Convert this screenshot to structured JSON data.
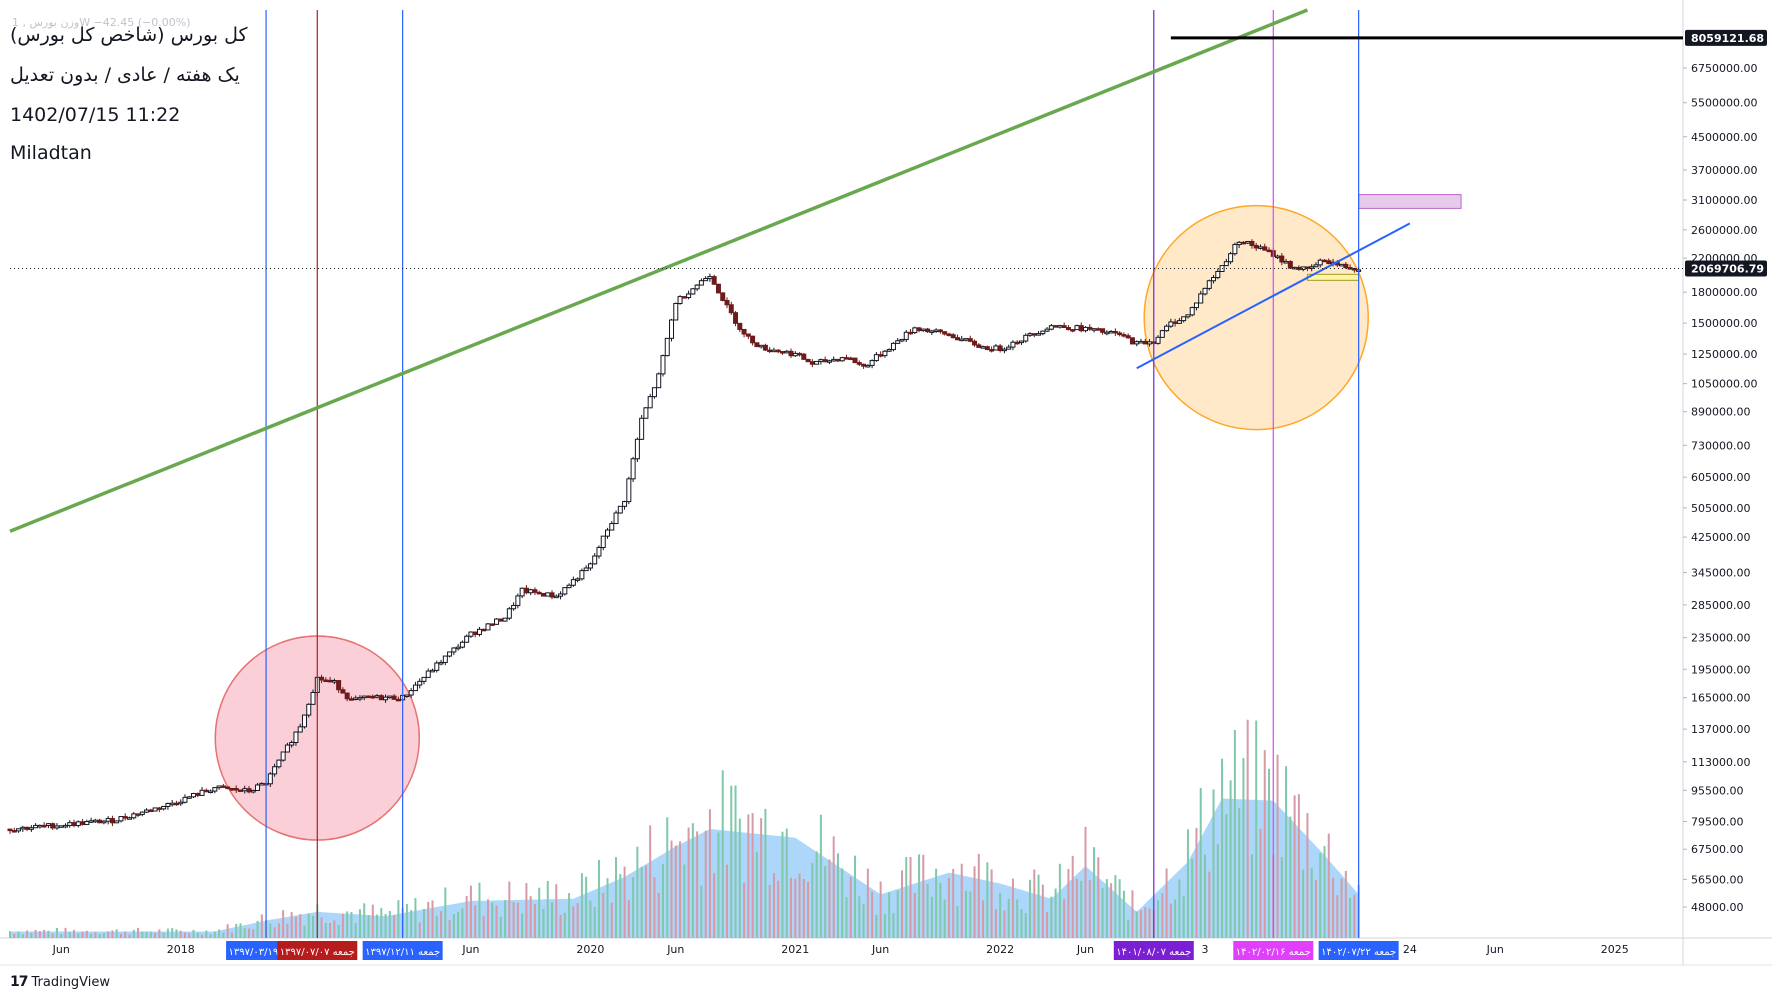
{
  "legend": {
    "ghost": "وزن بورس , 1W   −42.45 (−0.00%)",
    "title": "کل بورس (شاخص کل بورس)",
    "subtitle": "یک هفته / عادی / بدون تعدیل",
    "timestamp": "1402/07/15 11:22",
    "author": "Miladtan"
  },
  "branding": {
    "logo_text": "TradingView",
    "logo_mark": "17"
  },
  "colors": {
    "up": "#131722",
    "down": "#6d1b1b",
    "vol_up": "#7fc8a9",
    "vol_down": "#d59aa5",
    "vol_ma": "#90caf9",
    "trend_green": "#6aa84f",
    "trend_blue": "#2962ff"
  },
  "chart_data": {
    "type": "candlestick",
    "scale": "log",
    "y_range": [
      40000,
      9500000
    ],
    "price_ticks": [
      48000,
      56500,
      67500,
      79500,
      95500,
      113000,
      137000,
      165000,
      195000,
      235000,
      285000,
      345000,
      425000,
      505000,
      605000,
      730000,
      890000,
      1050000,
      1250000,
      1500000,
      1800000,
      2200000,
      2600000,
      3100000,
      3700000,
      4500000,
      5500000,
      6750000
    ],
    "price_tick_labels": [
      "48000.00",
      "56500.00",
      "67500.00",
      "79500.00",
      "95500.00",
      "113000.00",
      "137000.00",
      "165000.00",
      "195000.00",
      "235000.00",
      "285000.00",
      "345000.00",
      "425000.00",
      "505000.00",
      "605000.00",
      "730000.00",
      "890000.00",
      "1050000.00",
      "1250000.00",
      "1500000.00",
      "1800000.00",
      "2200000.00",
      "2600000.00",
      "3100000.00",
      "3700000.00",
      "4500000.00",
      "5500000.00",
      "6750000.00"
    ],
    "last_price": 2069706.79,
    "last_price_label": "2069706.79",
    "top_price": 8059121.68,
    "top_price_label": "8059121.68",
    "x_range": [
      "2017-03",
      "2025-05"
    ],
    "x_ticks": [
      {
        "date": "2017-06",
        "label": "Jun"
      },
      {
        "date": "2018-01",
        "label": "2018"
      },
      {
        "date": "2019-06",
        "label": "Jun"
      },
      {
        "date": "2020-01",
        "label": "2020"
      },
      {
        "date": "2020-06",
        "label": "Jun"
      },
      {
        "date": "2021-01",
        "label": "2021"
      },
      {
        "date": "2021-06",
        "label": "Jun"
      },
      {
        "date": "2022-01",
        "label": "2022"
      },
      {
        "date": "2022-06",
        "label": "Jun"
      },
      {
        "date": "2023-01",
        "label": "3"
      },
      {
        "date": "2024-01",
        "label": "24"
      },
      {
        "date": "2024-06",
        "label": "Jun"
      },
      {
        "date": "2025-01",
        "label": "2025"
      }
    ],
    "price_path": [
      [
        "2017-03",
        76000
      ],
      [
        "2017-09",
        80000
      ],
      [
        "2017-12",
        87000
      ],
      [
        "2018-03",
        97000
      ],
      [
        "2018-05",
        95000
      ],
      [
        "2018-06",
        100000
      ],
      [
        "2018-07",
        118000
      ],
      [
        "2018-08",
        140000
      ],
      [
        "2018-09",
        185000
      ],
      [
        "2018-10",
        180000
      ],
      [
        "2018-11",
        162000
      ],
      [
        "2018-12",
        165000
      ],
      [
        "2019-02",
        165000
      ],
      [
        "2019-04",
        200000
      ],
      [
        "2019-06",
        240000
      ],
      [
        "2019-08",
        265000
      ],
      [
        "2019-09",
        310000
      ],
      [
        "2019-11",
        300000
      ],
      [
        "2020-01",
        360000
      ],
      [
        "2020-02",
        445000
      ],
      [
        "2020-03",
        530000
      ],
      [
        "2020-04",
        850000
      ],
      [
        "2020-05",
        1100000
      ],
      [
        "2020-06",
        1700000
      ],
      [
        "2020-08",
        2000000
      ],
      [
        "2020-09",
        1650000
      ],
      [
        "2020-10",
        1400000
      ],
      [
        "2020-11",
        1300000
      ],
      [
        "2021-01",
        1250000
      ],
      [
        "2021-02",
        1180000
      ],
      [
        "2021-04",
        1230000
      ],
      [
        "2021-05",
        1160000
      ],
      [
        "2021-07",
        1350000
      ],
      [
        "2021-08",
        1460000
      ],
      [
        "2021-10",
        1400000
      ],
      [
        "2021-12",
        1300000
      ],
      [
        "2022-01",
        1290000
      ],
      [
        "2022-04",
        1480000
      ],
      [
        "2022-06",
        1450000
      ],
      [
        "2022-08",
        1400000
      ],
      [
        "2022-09",
        1330000
      ],
      [
        "2022-10",
        1350000
      ],
      [
        "2022-11",
        1500000
      ],
      [
        "2022-12",
        1570000
      ],
      [
        "2023-01",
        1850000
      ],
      [
        "2023-02",
        2100000
      ],
      [
        "2023-03",
        2450000
      ],
      [
        "2023-04",
        2350000
      ],
      [
        "2023-05",
        2250000
      ],
      [
        "2023-06",
        2100000
      ],
      [
        "2023-07",
        2050000
      ],
      [
        "2023-08",
        2180000
      ],
      [
        "2023-09",
        2100000
      ],
      [
        "2023-10",
        2069706
      ]
    ],
    "volume_path": [
      [
        "2017-03",
        0.03
      ],
      [
        "2018-03",
        0.03
      ],
      [
        "2018-06",
        0.08
      ],
      [
        "2018-09",
        0.12
      ],
      [
        "2019-01",
        0.1
      ],
      [
        "2019-06",
        0.17
      ],
      [
        "2019-12",
        0.18
      ],
      [
        "2020-03",
        0.28
      ],
      [
        "2020-06",
        0.42
      ],
      [
        "2020-08",
        0.5
      ],
      [
        "2021-01",
        0.46
      ],
      [
        "2021-06",
        0.2
      ],
      [
        "2021-10",
        0.3
      ],
      [
        "2022-01",
        0.25
      ],
      [
        "2022-04",
        0.18
      ],
      [
        "2022-06",
        0.33
      ],
      [
        "2022-09",
        0.12
      ],
      [
        "2022-12",
        0.35
      ],
      [
        "2023-02",
        0.64
      ],
      [
        "2023-05",
        0.63
      ],
      [
        "2023-08",
        0.38
      ],
      [
        "2023-10",
        0.2
      ]
    ],
    "drawings": {
      "trendlines": [
        {
          "name": "green-resistance",
          "color": "#6aa84f",
          "from": [
            "2017-03",
            440000
          ],
          "to": [
            "2023-07",
            9500000
          ]
        },
        {
          "name": "blue-support",
          "color": "#2962ff",
          "from": [
            "2022-09",
            1150000
          ],
          "to": [
            "2024-01",
            2700000
          ]
        }
      ],
      "vertical_lines": [
        {
          "date": "2018-06",
          "color": "#2962ff",
          "label": "جمعه ۱۳۹۷/۰۳/۱۹"
        },
        {
          "date": "2018-09",
          "color": "#b71c1c",
          "label": "جمعه ۱۳۹۷/۰۷/۰۷"
        },
        {
          "date": "2019-02",
          "color": "#2962ff",
          "label": "جمعه ۱۳۹۷/۱۲/۱۱"
        },
        {
          "date": "2022-10",
          "color": "#7b1fd4",
          "label": "جمعه ۱۴۰۱/۰۸/۰۷"
        },
        {
          "date": "2023-05",
          "color": "#e040fb",
          "label": "جمعه ۱۴۰۲/۰۲/۱۶"
        },
        {
          "date": "2023-10",
          "color": "#2962ff",
          "label": "جمعه ۱۴۰۲/۰۷/۲۲"
        }
      ],
      "circles": [
        {
          "name": "red-circle",
          "center": [
            "2018-09",
            130000
          ],
          "fill": "#f8bbc8",
          "stroke": "#e57373"
        },
        {
          "name": "orange-circle",
          "center": [
            "2023-04",
            1550000
          ],
          "fill": "#ffe0b2",
          "stroke": "#ffa726"
        }
      ],
      "boxes": [
        {
          "name": "pink-box",
          "from": [
            "2023-10",
            3200000
          ],
          "to": [
            "2024-04",
            2950000
          ],
          "fill": "#e1bee7",
          "stroke": "#ba68c8"
        },
        {
          "name": "yellow-box",
          "from": [
            "2023-07",
            2000000
          ],
          "to": [
            "2023-10",
            1950000
          ],
          "fill": "#fff59d",
          "stroke": "#9e9d24"
        }
      ],
      "top_line": {
        "from": "2022-11",
        "to": "2025-05",
        "price": 8059121.68
      }
    }
  }
}
